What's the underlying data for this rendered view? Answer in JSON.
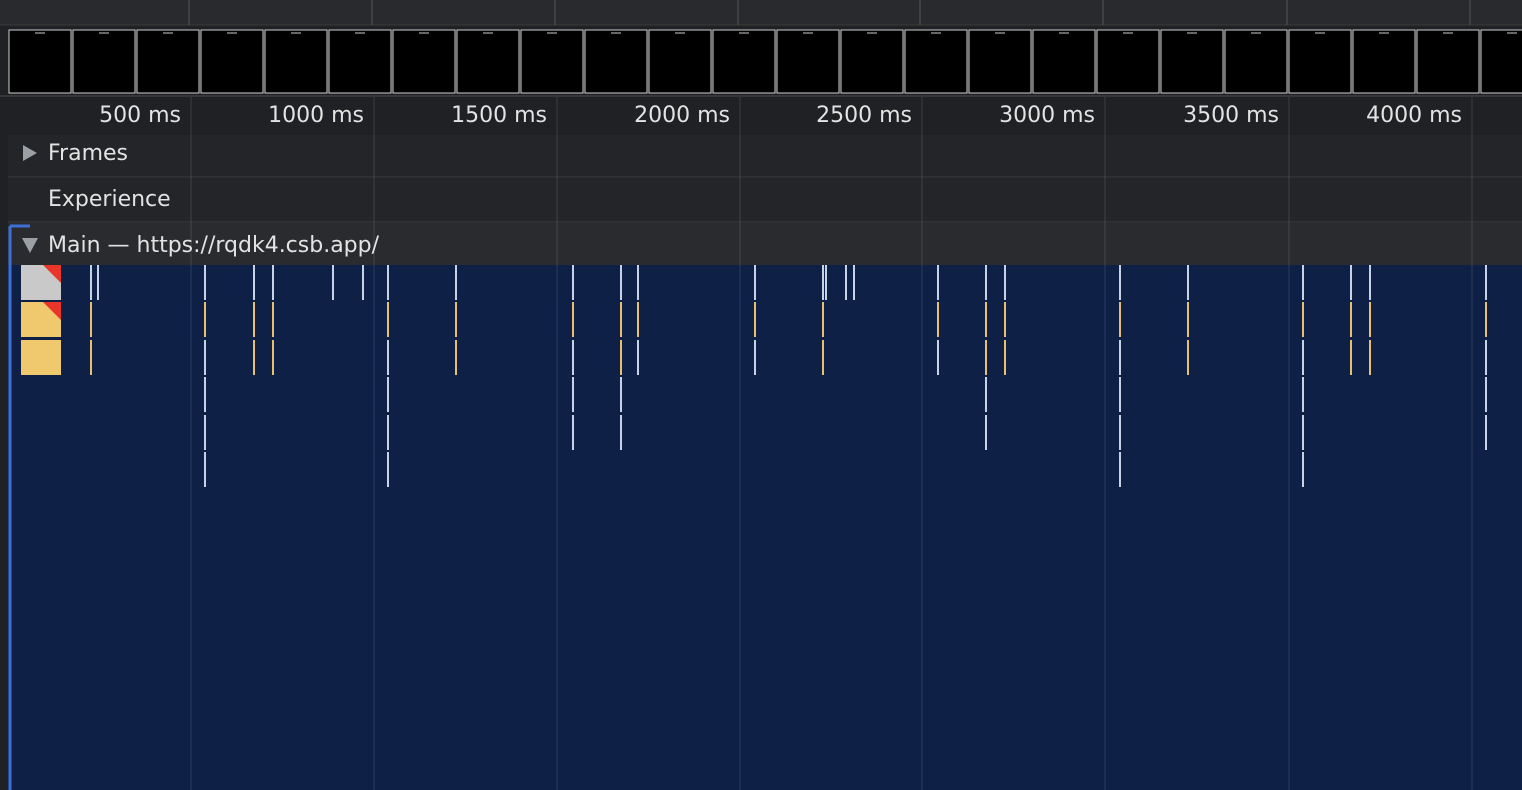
{
  "timeline": {
    "ruler": [
      "500 ms",
      "1000 ms",
      "1500 ms",
      "2000 ms",
      "2500 ms",
      "3000 ms",
      "3500 ms",
      "4000 ms"
    ],
    "tracks": {
      "frames": "Frames",
      "experience": "Experience",
      "main": "Main — https://rqdk4.csb.app/"
    }
  }
}
